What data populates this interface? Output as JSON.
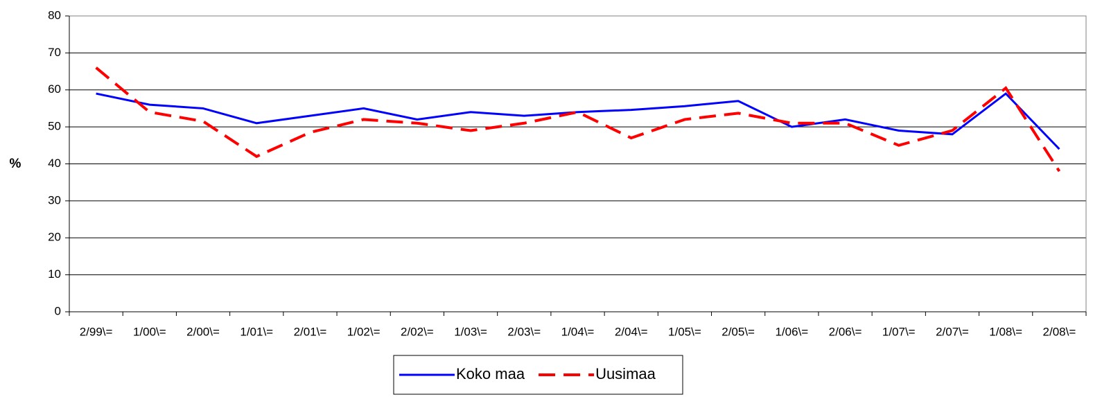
{
  "chart_data": {
    "type": "line",
    "y_label": "%",
    "categories": [
      "2/99\\=",
      "1/00\\=",
      "2/00\\=",
      "1/01\\=",
      "2/01\\=",
      "1/02\\=",
      "2/02\\=",
      "1/03\\=",
      "2/03\\=",
      "1/04\\=",
      "2/04\\=",
      "1/05\\=",
      "2/05\\=",
      "1/06\\=",
      "2/06\\=",
      "1/07\\=",
      "2/07\\=",
      "1/08\\=",
      "2/08\\="
    ],
    "series": [
      {
        "name": "Koko maa",
        "color": "#0000ff",
        "dashed": false,
        "values": [
          59,
          56,
          55,
          51,
          53,
          55,
          52,
          54,
          53,
          54,
          54.6,
          55.6,
          57,
          50,
          52,
          49,
          48,
          59,
          44
        ]
      },
      {
        "name": "Uusimaa",
        "color": "#ff0000",
        "dashed": true,
        "values": [
          66,
          54,
          51.5,
          42,
          48.5,
          52,
          51,
          49,
          51,
          54,
          47,
          52,
          53.7,
          51,
          51,
          45,
          49,
          60.5,
          38
        ]
      }
    ],
    "ylim": [
      0,
      80
    ],
    "yticks": [
      0,
      10,
      20,
      30,
      40,
      50,
      60,
      70,
      80
    ],
    "grid": true,
    "legend": "bottom"
  }
}
